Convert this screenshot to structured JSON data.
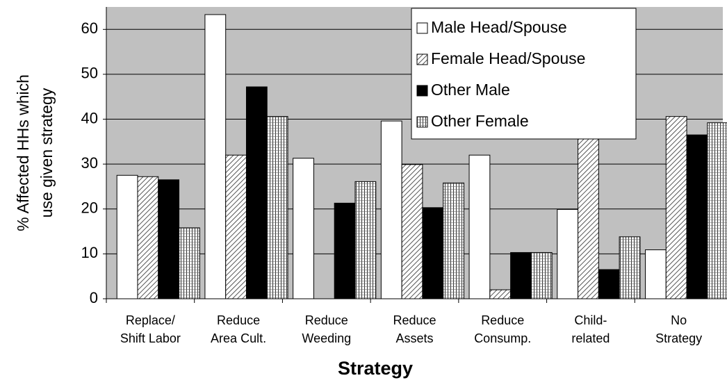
{
  "chart_data": {
    "type": "bar",
    "ylabel": [
      "% Affected HHs which",
      "use given strategy"
    ],
    "xlabel": "Strategy",
    "categories": [
      [
        "Replace/",
        "Shift Labor"
      ],
      [
        "Reduce",
        "Area Cult."
      ],
      [
        "Reduce",
        "Weeding"
      ],
      [
        "Reduce",
        "Assets"
      ],
      [
        "Reduce",
        "Consump."
      ],
      [
        "Child-",
        "related"
      ],
      [
        "No",
        "Strategy"
      ]
    ],
    "series": [
      {
        "name": "Male Head/Spouse",
        "color": "#ffffff",
        "pattern": "solid",
        "values": [
          27.5,
          63.3,
          31.3,
          39.6,
          32,
          19.9,
          10.9
        ]
      },
      {
        "name": "Female Head/Spouse",
        "color": "#ffffff",
        "pattern": "diagonal",
        "values": [
          27.2,
          32,
          0,
          29.9,
          2,
          38,
          40.6
        ]
      },
      {
        "name": "Other Male",
        "color": "#000000",
        "pattern": "solid",
        "values": [
          26.5,
          47.2,
          21.3,
          20.3,
          10.3,
          6.5,
          36.5
        ]
      },
      {
        "name": "Other Female",
        "color": "#ffffff",
        "pattern": "grid",
        "values": [
          15.8,
          40.6,
          26.1,
          25.8,
          10.3,
          13.8,
          39.2
        ]
      }
    ],
    "ylim": [
      0,
      65
    ],
    "yticks": [
      0,
      10,
      20,
      30,
      40,
      50,
      60
    ],
    "grid": true,
    "plot_background": "#c0c0c0",
    "legend": "top-right"
  }
}
